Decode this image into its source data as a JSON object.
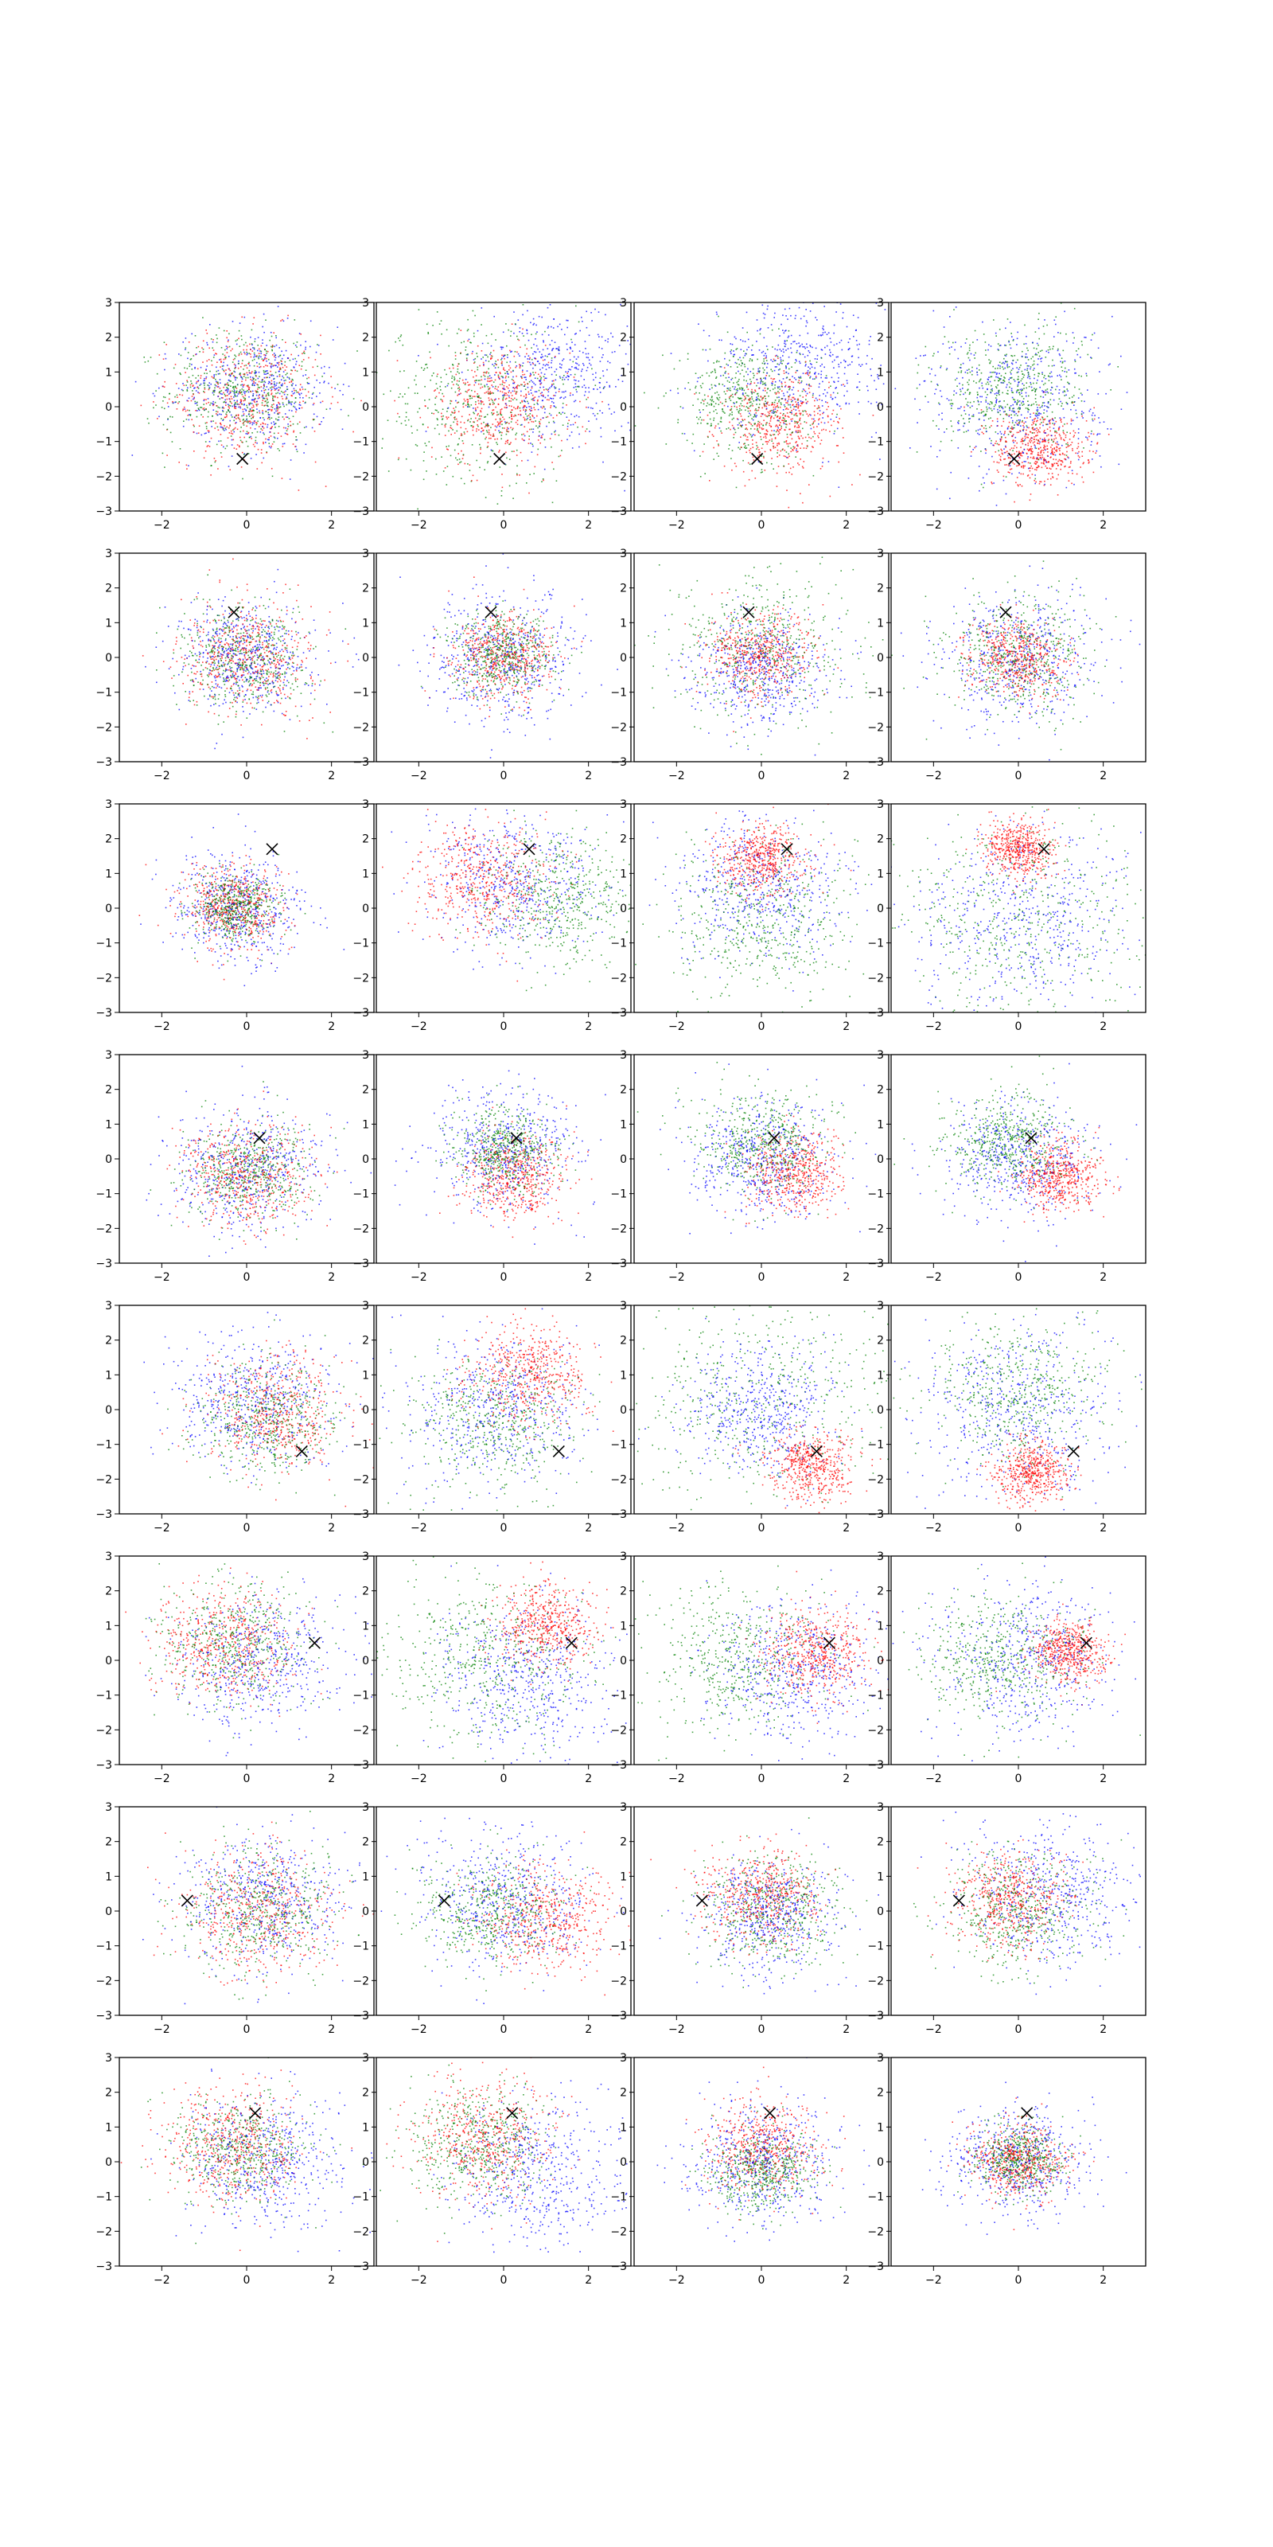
{
  "chart_data": {
    "type": "scatter",
    "layout": {
      "rows": 8,
      "cols": 4
    },
    "panel_axes": {
      "xlim": [
        -3,
        3
      ],
      "ylim": [
        -3,
        3
      ],
      "xticks": [
        -2,
        0,
        2
      ],
      "yticks": [
        -3,
        -2,
        -1,
        0,
        1,
        2,
        3
      ],
      "grid": false
    },
    "series_colors": {
      "red": "#ff0000",
      "green": "#008000",
      "blue": "#0000ff"
    },
    "marker": {
      "symbol": "x",
      "color": "#000000"
    },
    "rows": [
      {
        "marker": [
          -0.1,
          -1.5
        ],
        "panels": [
          {
            "red": {
              "center": [
                0.0,
                0.3
              ],
              "spread": 0.9
            },
            "green": {
              "center": [
                -0.1,
                0.4
              ],
              "spread": 0.9
            },
            "blue": {
              "center": [
                0.2,
                0.5
              ],
              "spread": 0.9
            }
          },
          {
            "red": {
              "center": [
                -0.1,
                0.0
              ],
              "spread": 0.8
            },
            "green": {
              "center": [
                -0.6,
                0.2
              ],
              "spread": 1.2
            },
            "blue": {
              "center": [
                1.2,
                1.0
              ],
              "spread": 1.0
            }
          },
          {
            "red": {
              "center": [
                0.5,
                -0.5
              ],
              "spread": 0.7
            },
            "green": {
              "center": [
                -0.3,
                0.2
              ],
              "spread": 0.8
            },
            "blue": {
              "center": [
                0.8,
                1.2
              ],
              "spread": 1.0
            }
          },
          {
            "red": {
              "center": [
                0.5,
                -1.2
              ],
              "spread": 0.55
            },
            "green": {
              "center": [
                -0.2,
                0.5
              ],
              "spread": 0.9
            },
            "blue": {
              "center": [
                0.0,
                0.2
              ],
              "spread": 1.1
            }
          }
        ]
      },
      {
        "marker": [
          -0.3,
          1.3
        ],
        "panels": [
          {
            "red": {
              "center": [
                0.0,
                0.0
              ],
              "spread": 0.75
            },
            "green": {
              "center": [
                0.0,
                0.0
              ],
              "spread": 0.75
            },
            "blue": {
              "center": [
                0.0,
                0.0
              ],
              "spread": 0.8
            }
          },
          {
            "red": {
              "center": [
                0.0,
                0.0
              ],
              "spread": 0.6
            },
            "green": {
              "center": [
                0.0,
                0.1
              ],
              "spread": 0.6
            },
            "blue": {
              "center": [
                0.0,
                0.0
              ],
              "spread": 0.95
            }
          },
          {
            "red": {
              "center": [
                0.0,
                0.1
              ],
              "spread": 0.6
            },
            "green": {
              "center": [
                0.0,
                0.3
              ],
              "spread": 1.0
            },
            "blue": {
              "center": [
                0.0,
                -0.4
              ],
              "spread": 0.8
            }
          },
          {
            "red": {
              "center": [
                0.0,
                0.0
              ],
              "spread": 0.55
            },
            "green": {
              "center": [
                0.0,
                0.0
              ],
              "spread": 0.85
            },
            "blue": {
              "center": [
                0.0,
                0.0
              ],
              "spread": 0.95
            }
          }
        ]
      },
      {
        "marker": [
          0.6,
          1.7
        ],
        "panels": [
          {
            "red": {
              "center": [
                -0.3,
                0.0
              ],
              "spread": 0.6
            },
            "green": {
              "center": [
                -0.3,
                0.0
              ],
              "spread": 0.5
            },
            "blue": {
              "center": [
                -0.2,
                0.0
              ],
              "spread": 0.8
            }
          },
          {
            "red": {
              "center": [
                -0.5,
                0.8
              ],
              "spread": 0.8
            },
            "green": {
              "center": [
                1.3,
                0.3
              ],
              "spread": 0.9
            },
            "blue": {
              "center": [
                0.2,
                0.8
              ],
              "spread": 1.0
            }
          },
          {
            "red": {
              "center": [
                0.0,
                1.4
              ],
              "spread": 0.5
            },
            "green": {
              "center": [
                0.0,
                -0.3
              ],
              "spread": 1.1
            },
            "blue": {
              "center": [
                0.0,
                0.6
              ],
              "spread": 1.0
            }
          },
          {
            "red": {
              "center": [
                0.0,
                1.7
              ],
              "spread": 0.4
            },
            "green": {
              "center": [
                0.0,
                -0.5
              ],
              "spread": 1.6
            },
            "blue": {
              "center": [
                0.0,
                -0.3
              ],
              "spread": 1.3
            }
          }
        ]
      },
      {
        "marker": [
          0.3,
          0.6
        ],
        "panels": [
          {
            "red": {
              "center": [
                0.0,
                -0.5
              ],
              "spread": 0.75
            },
            "green": {
              "center": [
                0.0,
                -0.4
              ],
              "spread": 0.7
            },
            "blue": {
              "center": [
                0.0,
                -0.3
              ],
              "spread": 0.95
            }
          },
          {
            "red": {
              "center": [
                0.3,
                -0.5
              ],
              "spread": 0.6
            },
            "green": {
              "center": [
                0.0,
                0.3
              ],
              "spread": 0.6
            },
            "blue": {
              "center": [
                0.0,
                0.2
              ],
              "spread": 0.85
            }
          },
          {
            "red": {
              "center": [
                0.8,
                -0.4
              ],
              "spread": 0.55
            },
            "green": {
              "center": [
                0.0,
                0.5
              ],
              "spread": 0.75
            },
            "blue": {
              "center": [
                0.0,
                0.0
              ],
              "spread": 0.85
            }
          },
          {
            "red": {
              "center": [
                1.0,
                -0.5
              ],
              "spread": 0.5
            },
            "green": {
              "center": [
                -0.3,
                0.5
              ],
              "spread": 0.7
            },
            "blue": {
              "center": [
                0.0,
                0.0
              ],
              "spread": 0.85
            }
          }
        ]
      },
      {
        "marker": [
          1.3,
          -1.2
        ],
        "panels": [
          {
            "red": {
              "center": [
                0.7,
                -0.2
              ],
              "spread": 0.8
            },
            "green": {
              "center": [
                0.5,
                -0.3
              ],
              "spread": 0.8
            },
            "blue": {
              "center": [
                0.2,
                0.2
              ],
              "spread": 0.95
            }
          },
          {
            "red": {
              "center": [
                0.6,
                1.0
              ],
              "spread": 0.7
            },
            "green": {
              "center": [
                -0.2,
                -0.3
              ],
              "spread": 1.0
            },
            "blue": {
              "center": [
                -0.2,
                0.0
              ],
              "spread": 1.1
            }
          },
          {
            "red": {
              "center": [
                1.2,
                -1.6
              ],
              "spread": 0.5
            },
            "green": {
              "center": [
                0.0,
                0.4
              ],
              "spread": 1.6
            },
            "blue": {
              "center": [
                0.0,
                0.0
              ],
              "spread": 0.9
            }
          },
          {
            "red": {
              "center": [
                0.3,
                -1.8
              ],
              "spread": 0.45
            },
            "green": {
              "center": [
                0.0,
                0.5
              ],
              "spread": 1.0
            },
            "blue": {
              "center": [
                0.0,
                0.0
              ],
              "spread": 1.2
            }
          }
        ]
      },
      {
        "marker": [
          1.6,
          0.5
        ],
        "panels": [
          {
            "red": {
              "center": [
                -0.5,
                0.6
              ],
              "spread": 0.8
            },
            "green": {
              "center": [
                -0.3,
                0.5
              ],
              "spread": 0.85
            },
            "blue": {
              "center": [
                0.3,
                0.0
              ],
              "spread": 0.95
            }
          },
          {
            "red": {
              "center": [
                1.0,
                1.0
              ],
              "spread": 0.6
            },
            "green": {
              "center": [
                -0.5,
                0.0
              ],
              "spread": 1.1
            },
            "blue": {
              "center": [
                0.6,
                -0.6
              ],
              "spread": 1.1
            }
          },
          {
            "red": {
              "center": [
                1.3,
                0.2
              ],
              "spread": 0.6
            },
            "green": {
              "center": [
                -0.6,
                0.0
              ],
              "spread": 1.0
            },
            "blue": {
              "center": [
                0.8,
                -0.4
              ],
              "spread": 1.0
            }
          },
          {
            "red": {
              "center": [
                1.2,
                0.2
              ],
              "spread": 0.45
            },
            "green": {
              "center": [
                -0.5,
                0.0
              ],
              "spread": 0.95
            },
            "blue": {
              "center": [
                0.2,
                0.0
              ],
              "spread": 1.1
            }
          }
        ]
      },
      {
        "marker": [
          -1.4,
          0.3
        ],
        "panels": [
          {
            "red": {
              "center": [
                0.3,
                0.0
              ],
              "spread": 0.9
            },
            "green": {
              "center": [
                0.3,
                0.0
              ],
              "spread": 0.9
            },
            "blue": {
              "center": [
                0.4,
                0.3
              ],
              "spread": 0.95
            }
          },
          {
            "red": {
              "center": [
                1.0,
                -0.2
              ],
              "spread": 0.75
            },
            "green": {
              "center": [
                -0.3,
                0.0
              ],
              "spread": 0.8
            },
            "blue": {
              "center": [
                0.0,
                0.2
              ],
              "spread": 1.0
            }
          },
          {
            "red": {
              "center": [
                0.0,
                0.4
              ],
              "spread": 0.7
            },
            "green": {
              "center": [
                0.2,
                0.0
              ],
              "spread": 0.8
            },
            "blue": {
              "center": [
                0.2,
                -0.2
              ],
              "spread": 0.8
            }
          },
          {
            "red": {
              "center": [
                -0.2,
                0.3
              ],
              "spread": 0.65
            },
            "green": {
              "center": [
                0.0,
                0.0
              ],
              "spread": 0.85
            },
            "blue": {
              "center": [
                0.8,
                0.5
              ],
              "spread": 1.0
            }
          }
        ]
      },
      {
        "marker": [
          0.2,
          1.4
        ],
        "panels": [
          {
            "red": {
              "center": [
                -0.4,
                0.5
              ],
              "spread": 0.8
            },
            "green": {
              "center": [
                -0.2,
                0.3
              ],
              "spread": 0.8
            },
            "blue": {
              "center": [
                0.4,
                0.0
              ],
              "spread": 0.95
            }
          },
          {
            "red": {
              "center": [
                -0.5,
                0.7
              ],
              "spread": 0.85
            },
            "green": {
              "center": [
                -0.6,
                0.5
              ],
              "spread": 0.8
            },
            "blue": {
              "center": [
                0.8,
                -0.4
              ],
              "spread": 1.0
            }
          },
          {
            "red": {
              "center": [
                0.0,
                0.4
              ],
              "spread": 0.65
            },
            "green": {
              "center": [
                0.0,
                -0.3
              ],
              "spread": 0.6
            },
            "blue": {
              "center": [
                0.0,
                0.0
              ],
              "spread": 0.9
            }
          },
          {
            "red": {
              "center": [
                0.0,
                0.0
              ],
              "spread": 0.55
            },
            "green": {
              "center": [
                0.0,
                0.1
              ],
              "spread": 0.5
            },
            "blue": {
              "center": [
                0.0,
                0.0
              ],
              "spread": 0.8
            }
          }
        ]
      }
    ]
  }
}
